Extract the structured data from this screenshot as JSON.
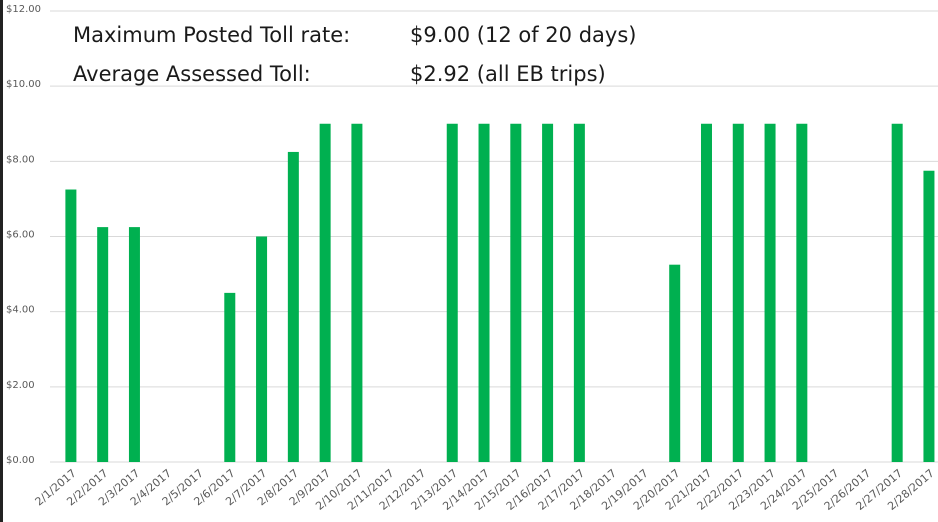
{
  "chart_data": {
    "type": "bar",
    "annotations": [
      {
        "label": "Maximum Posted Toll rate:",
        "value": "$9.00 (12 of 20 days)"
      },
      {
        "label": "Average Assessed Toll:",
        "value": "$2.92 (all EB trips)"
      }
    ],
    "categories": [
      "2/1/2017",
      "2/2/2017",
      "2/3/2017",
      "2/4/2017",
      "2/5/2017",
      "2/6/2017",
      "2/7/2017",
      "2/8/2017",
      "2/9/2017",
      "2/10/2017",
      "2/11/2017",
      "2/12/2017",
      "2/13/2017",
      "2/14/2017",
      "2/15/2017",
      "2/16/2017",
      "2/17/2017",
      "2/18/2017",
      "2/19/2017",
      "2/20/2017",
      "2/21/2017",
      "2/22/2017",
      "2/23/2017",
      "2/24/2017",
      "2/25/2017",
      "2/26/2017",
      "2/27/2017",
      "2/28/2017"
    ],
    "values": [
      7.25,
      6.25,
      6.25,
      null,
      null,
      4.5,
      6,
      8.25,
      9,
      9,
      null,
      null,
      9,
      9,
      9,
      9,
      9,
      null,
      null,
      5.25,
      9,
      9,
      9,
      9,
      null,
      null,
      9,
      7.75
    ],
    "color": "#00b050",
    "ylim": [
      0,
      12
    ],
    "yticks": [
      {
        "value": 0,
        "label": "$0.00"
      },
      {
        "value": 2,
        "label": "$2.00"
      },
      {
        "value": 4,
        "label": "$4.00"
      },
      {
        "value": 6,
        "label": "$6.00"
      },
      {
        "value": 8,
        "label": "$8.00"
      },
      {
        "value": 10,
        "label": "$10.00"
      },
      {
        "value": 12,
        "label": "$12.00"
      }
    ],
    "grid": true
  }
}
